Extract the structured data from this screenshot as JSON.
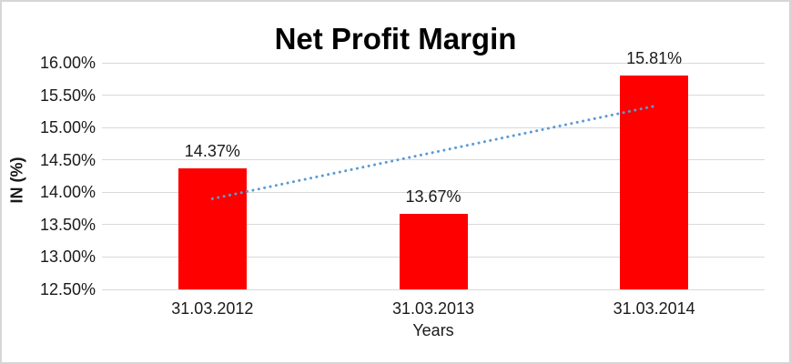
{
  "window": {
    "bg": "#ffffff",
    "border_color": "#d6d6d6"
  },
  "chart_data": {
    "type": "bar",
    "title": "Net Profit Margin",
    "xlabel": "Years",
    "ylabel": "IN (%)",
    "categories": [
      "31.03.2012",
      "31.03.2013",
      "31.03.2014"
    ],
    "values": [
      14.37,
      13.67,
      15.81
    ],
    "data_labels": [
      "14.37%",
      "13.67%",
      "15.81%"
    ],
    "ylim": [
      12.5,
      16.0
    ],
    "ytick_step": 0.5,
    "ytick_labels": [
      "16.00%",
      "15.50%",
      "15.00%",
      "14.50%",
      "14.00%",
      "13.50%",
      "13.00%",
      "12.50%"
    ],
    "grid": true,
    "legend": "none",
    "colors": {
      "bar": "#ff0000",
      "trendline": "#5b9bd5",
      "gridline": "#d9d9d9",
      "text": "#1a1a1a",
      "title_text": "#000000"
    },
    "trendline": {
      "kind": "linear",
      "style": "dotted",
      "start_value": 13.9,
      "end_value": 15.33
    }
  }
}
